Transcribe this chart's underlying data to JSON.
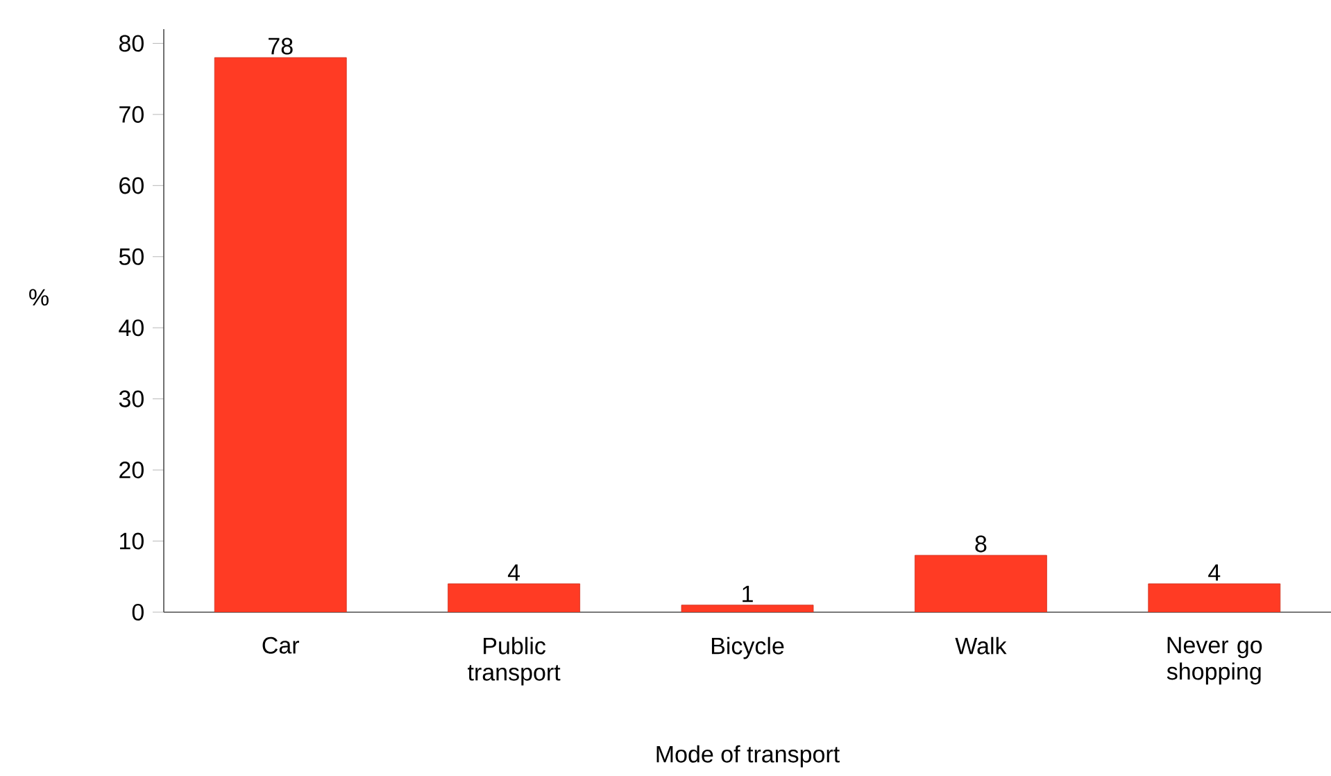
{
  "chart_data": {
    "type": "bar",
    "xlabel": "Mode of transport",
    "ylabel": "%",
    "categories": [
      "Car",
      "Public transport",
      "Bicycle",
      "Walk",
      "Never go shopping"
    ],
    "values": [
      78,
      4,
      1,
      8,
      4
    ],
    "color": "#ff3b24",
    "data_labels": true,
    "ylim": [
      0,
      82
    ],
    "yticks": [
      0,
      10,
      20,
      30,
      40,
      50,
      60,
      70,
      80
    ],
    "grid": false
  }
}
